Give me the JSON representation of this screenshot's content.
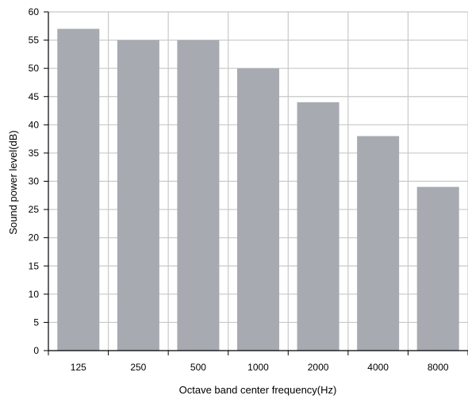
{
  "chart_data": {
    "type": "bar",
    "title": "",
    "xlabel": "Octave band center frequency(Hz)",
    "ylabel": "Sound power level(dB)",
    "categories": [
      "125",
      "250",
      "500",
      "1000",
      "2000",
      "4000",
      "8000"
    ],
    "values": [
      57,
      55,
      55,
      50,
      44,
      38,
      29
    ],
    "ylim": [
      0,
      60
    ],
    "yticks": [
      "0",
      "5",
      "10",
      "15",
      "20",
      "25",
      "30",
      "35",
      "40",
      "45",
      "50",
      "55",
      "60"
    ],
    "grid": true,
    "legend": "none",
    "colors": {
      "bar": "#a7aab1",
      "grid": "#c8c8c8",
      "axis": "#000000"
    }
  }
}
